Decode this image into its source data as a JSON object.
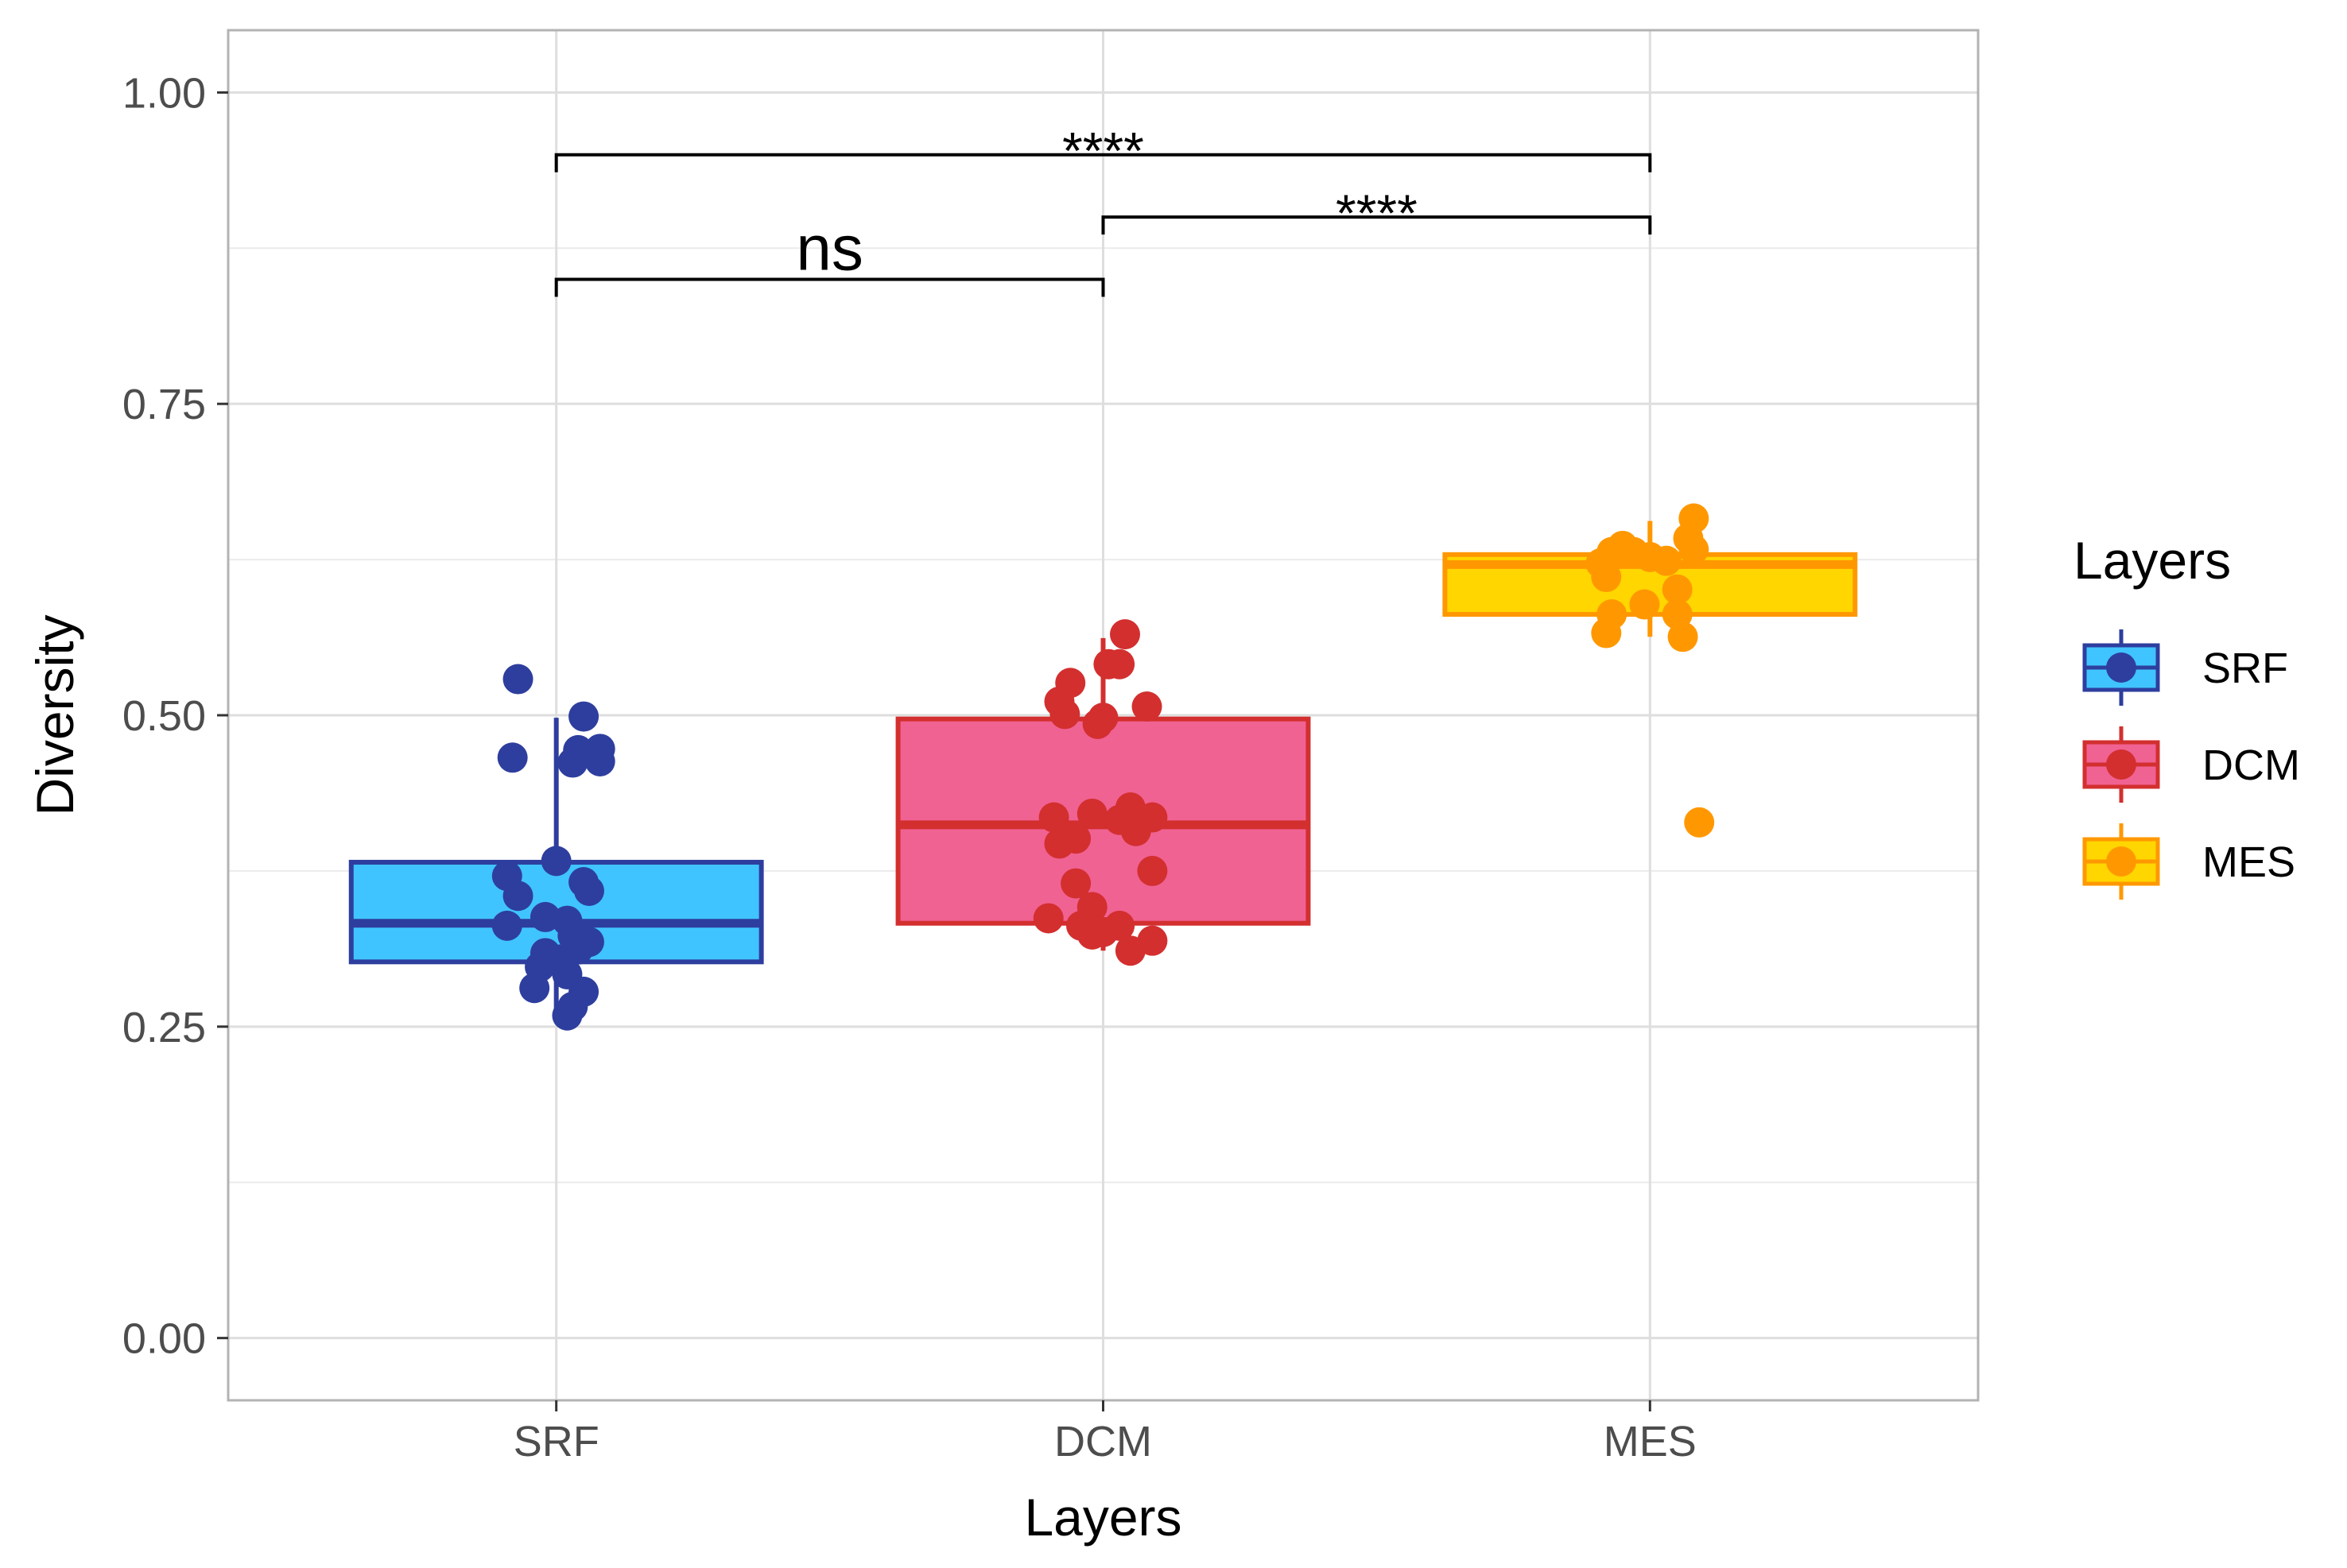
{
  "chart_data": {
    "type": "boxplot",
    "xlabel": "Layers",
    "ylabel": "Diversity",
    "categories": [
      "SRF",
      "DCM",
      "MES"
    ],
    "ylim": [
      -0.05,
      1.05
    ],
    "y_ticks": [
      {
        "value": 0.0,
        "label": "0.00"
      },
      {
        "value": 0.25,
        "label": "0.25"
      },
      {
        "value": 0.5,
        "label": "0.50"
      },
      {
        "value": 0.75,
        "label": "0.75"
      },
      {
        "value": 1.0,
        "label": "1.00"
      }
    ],
    "grid": true,
    "legend": {
      "title": "Layers",
      "position": "right",
      "entries": [
        "SRF",
        "DCM",
        "MES"
      ]
    },
    "series": [
      {
        "name": "SRF",
        "box": {
          "q1": 0.302,
          "median": 0.333,
          "q3": 0.382,
          "whisker_low": 0.258,
          "whisker_high": 0.498
        },
        "points": [
          [
            -0.07,
            0.529
          ],
          [
            -0.08,
            0.466
          ],
          [
            0.05,
            0.499
          ],
          [
            0.08,
            0.473
          ],
          [
            0.04,
            0.472
          ],
          [
            0.03,
            0.462
          ],
          [
            0.08,
            0.463
          ],
          [
            0.0,
            0.383
          ],
          [
            -0.09,
            0.371
          ],
          [
            0.05,
            0.366
          ],
          [
            -0.07,
            0.355
          ],
          [
            0.06,
            0.359
          ],
          [
            -0.02,
            0.338
          ],
          [
            0.02,
            0.335
          ],
          [
            -0.09,
            0.331
          ],
          [
            0.03,
            0.323
          ],
          [
            0.06,
            0.318
          ],
          [
            -0.02,
            0.309
          ],
          [
            0.04,
            0.312
          ],
          [
            0.01,
            0.304
          ],
          [
            -0.03,
            0.298
          ],
          [
            0.02,
            0.292
          ],
          [
            -0.04,
            0.281
          ],
          [
            0.05,
            0.278
          ],
          [
            0.03,
            0.266
          ],
          [
            0.02,
            0.259
          ]
        ],
        "box_fill": "#40c4ff",
        "color": "#2e3e9e"
      },
      {
        "name": "DCM",
        "box": {
          "q1": 0.333,
          "median": 0.412,
          "q3": 0.497,
          "whisker_low": 0.311,
          "whisker_high": 0.562
        },
        "points": [
          [
            0.04,
            0.565
          ],
          [
            0.01,
            0.541
          ],
          [
            0.03,
            0.541
          ],
          [
            -0.06,
            0.526
          ],
          [
            -0.08,
            0.511
          ],
          [
            -0.07,
            0.501
          ],
          [
            0.08,
            0.507
          ],
          [
            0.0,
            0.498
          ],
          [
            -0.01,
            0.493
          ],
          [
            -0.02,
            0.421
          ],
          [
            0.05,
            0.426
          ],
          [
            0.09,
            0.418
          ],
          [
            -0.09,
            0.418
          ],
          [
            0.03,
            0.416
          ],
          [
            0.06,
            0.407
          ],
          [
            -0.05,
            0.401
          ],
          [
            -0.08,
            0.397
          ],
          [
            0.09,
            0.375
          ],
          [
            -0.05,
            0.365
          ],
          [
            -0.02,
            0.346
          ],
          [
            -0.1,
            0.337
          ],
          [
            0.03,
            0.331
          ],
          [
            -0.04,
            0.331
          ],
          [
            0.0,
            0.326
          ],
          [
            -0.02,
            0.324
          ],
          [
            0.09,
            0.319
          ],
          [
            0.05,
            0.311
          ]
        ],
        "box_fill": "#f06292",
        "color": "#d32f2f"
      },
      {
        "name": "MES",
        "box": {
          "q1": 0.581,
          "median": 0.621,
          "q3": 0.629,
          "whisker_low": 0.563,
          "whisker_high": 0.656
        },
        "points": [
          [
            0.08,
            0.658
          ],
          [
            0.07,
            0.642
          ],
          [
            0.08,
            0.633
          ],
          [
            -0.07,
            0.631
          ],
          [
            -0.05,
            0.636
          ],
          [
            -0.03,
            0.631
          ],
          [
            0.0,
            0.627
          ],
          [
            0.03,
            0.624
          ],
          [
            -0.09,
            0.622
          ],
          [
            -0.08,
            0.611
          ],
          [
            0.05,
            0.601
          ],
          [
            -0.01,
            0.589
          ],
          [
            -0.07,
            0.581
          ],
          [
            0.05,
            0.581
          ],
          [
            -0.08,
            0.566
          ],
          [
            0.06,
            0.563
          ],
          [
            0.09,
            0.414
          ]
        ],
        "box_fill": "#ffd600",
        "color": "#ff9800"
      }
    ],
    "annotations": [
      {
        "from": "SRF",
        "to": "MES",
        "y": 0.95,
        "label": "****",
        "size": "small"
      },
      {
        "from": "DCM",
        "to": "MES",
        "y": 0.9,
        "label": "****",
        "size": "small"
      },
      {
        "from": "SRF",
        "to": "DCM",
        "y": 0.85,
        "label": "ns",
        "size": "large"
      }
    ]
  }
}
